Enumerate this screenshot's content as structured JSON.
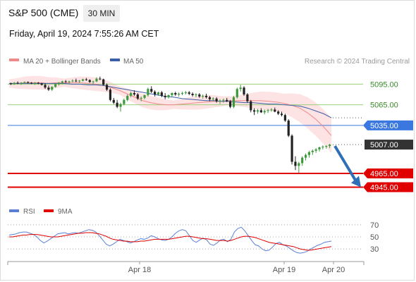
{
  "header": {
    "title": "S&P 500 (CME)",
    "timeframe": "30 MIN",
    "datetime": "Friday, April 19, 2024 7:55:26 AM CET"
  },
  "legend": {
    "items": [
      {
        "label": "MA 20 + Bollinger Bands",
        "color": "#f08a8a"
      },
      {
        "label": "MA 50",
        "color": "#3b5ea8"
      }
    ],
    "credit": "Research © 2024 Trading Central"
  },
  "chart_data": [
    {
      "type": "candlestick",
      "ylim": [
        4925,
        5120
      ],
      "x_ticks": [
        "Apr 18",
        "Apr 19",
        "Apr 20"
      ],
      "series": [
        {
          "name": "MA 20 + Bollinger Bands",
          "color": "#f08a8a",
          "band_color": "#fde3e3",
          "values": [
            5096,
            5096,
            5097,
            5097,
            5097,
            5096,
            5097,
            5097,
            5097,
            5097,
            5096,
            5095,
            5093,
            5090,
            5086,
            5081,
            5076,
            5071,
            5068,
            5066,
            5065,
            5065,
            5066,
            5067,
            5068,
            5069,
            5070,
            5070,
            5071,
            5071,
            5071,
            5071,
            5071,
            5070,
            5069,
            5067,
            5064,
            5060,
            5053,
            5044,
            5033,
            5020
          ]
        },
        {
          "name": "MA 50",
          "color": "#3b5ea8",
          "values": [
            5096,
            5096,
            5096,
            5096,
            5096,
            5096,
            5096,
            5096,
            5095,
            5095,
            5094,
            5094,
            5093,
            5091,
            5089,
            5087,
            5085,
            5083,
            5081,
            5079,
            5077,
            5076,
            5074,
            5073,
            5072,
            5071,
            5071,
            5070,
            5070,
            5069,
            5068,
            5068,
            5067,
            5066,
            5066,
            5065,
            5064,
            5063,
            5060,
            5056,
            5052,
            5046
          ]
        }
      ],
      "candles": [
        [
          5096,
          5097,
          5094,
          5095
        ],
        [
          5095,
          5098,
          5094,
          5097
        ],
        [
          5097,
          5099,
          5095,
          5096
        ],
        [
          5096,
          5098,
          5094,
          5097
        ],
        [
          5097,
          5099,
          5096,
          5098
        ],
        [
          5098,
          5099,
          5096,
          5097
        ],
        [
          5097,
          5098,
          5095,
          5096
        ],
        [
          5096,
          5098,
          5094,
          5097
        ],
        [
          5097,
          5098,
          5095,
          5096
        ],
        [
          5096,
          5097,
          5093,
          5094
        ],
        [
          5094,
          5096,
          5088,
          5090
        ],
        [
          5090,
          5093,
          5085,
          5087
        ],
        [
          5087,
          5092,
          5085,
          5091
        ],
        [
          5091,
          5096,
          5090,
          5095
        ],
        [
          5095,
          5098,
          5093,
          5097
        ],
        [
          5097,
          5100,
          5095,
          5099
        ],
        [
          5099,
          5101,
          5097,
          5098
        ],
        [
          5098,
          5100,
          5096,
          5099
        ],
        [
          5099,
          5102,
          5098,
          5100
        ],
        [
          5100,
          5103,
          5098,
          5099
        ],
        [
          5099,
          5101,
          5097,
          5100
        ],
        [
          5100,
          5103,
          5099,
          5102
        ],
        [
          5102,
          5104,
          5100,
          5101
        ],
        [
          5101,
          5102,
          5097,
          5098
        ],
        [
          5098,
          5100,
          5095,
          5099
        ],
        [
          5099,
          5105,
          5098,
          5103
        ],
        [
          5103,
          5106,
          5101,
          5102
        ],
        [
          5102,
          5103,
          5093,
          5094
        ],
        [
          5094,
          5096,
          5085,
          5087
        ],
        [
          5087,
          5089,
          5070,
          5072
        ],
        [
          5072,
          5075,
          5066,
          5068
        ],
        [
          5068,
          5072,
          5060,
          5062
        ],
        [
          5062,
          5068,
          5055,
          5066
        ],
        [
          5066,
          5074,
          5064,
          5072
        ],
        [
          5072,
          5080,
          5070,
          5078
        ],
        [
          5078,
          5084,
          5076,
          5082
        ],
        [
          5082,
          5086,
          5078,
          5080
        ],
        [
          5080,
          5082,
          5072,
          5074
        ],
        [
          5074,
          5077,
          5070,
          5075
        ],
        [
          5075,
          5080,
          5073,
          5079
        ],
        [
          5079,
          5090,
          5077,
          5088
        ],
        [
          5088,
          5092,
          5082,
          5084
        ],
        [
          5084,
          5086,
          5077,
          5080
        ],
        [
          5080,
          5084,
          5078,
          5083
        ],
        [
          5083,
          5085,
          5076,
          5078
        ],
        [
          5078,
          5082,
          5073,
          5076
        ],
        [
          5076,
          5080,
          5074,
          5079
        ],
        [
          5079,
          5083,
          5076,
          5082
        ],
        [
          5082,
          5084,
          5078,
          5080
        ],
        [
          5080,
          5083,
          5077,
          5081
        ],
        [
          5081,
          5084,
          5079,
          5082
        ],
        [
          5082,
          5085,
          5080,
          5083
        ],
        [
          5083,
          5085,
          5079,
          5081
        ],
        [
          5081,
          5083,
          5077,
          5079
        ],
        [
          5079,
          5082,
          5076,
          5080
        ],
        [
          5080,
          5082,
          5075,
          5077
        ],
        [
          5077,
          5080,
          5074,
          5078
        ],
        [
          5078,
          5081,
          5074,
          5076
        ],
        [
          5076,
          5078,
          5070,
          5073
        ],
        [
          5073,
          5076,
          5070,
          5074
        ],
        [
          5074,
          5076,
          5068,
          5070
        ],
        [
          5070,
          5073,
          5066,
          5071
        ],
        [
          5071,
          5074,
          5068,
          5072
        ],
        [
          5072,
          5075,
          5069,
          5070
        ],
        [
          5070,
          5072,
          5060,
          5062
        ],
        [
          5062,
          5078,
          5060,
          5076
        ],
        [
          5076,
          5090,
          5074,
          5088
        ],
        [
          5088,
          5094,
          5084,
          5090
        ],
        [
          5090,
          5092,
          5078,
          5080
        ],
        [
          5080,
          5082,
          5068,
          5070
        ],
        [
          5070,
          5072,
          5054,
          5057
        ],
        [
          5057,
          5060,
          5050,
          5055
        ],
        [
          5055,
          5059,
          5052,
          5057
        ],
        [
          5057,
          5060,
          5053,
          5054
        ],
        [
          5054,
          5058,
          5051,
          5056
        ],
        [
          5056,
          5059,
          5053,
          5057
        ],
        [
          5057,
          5060,
          5055,
          5058
        ],
        [
          5058,
          5061,
          5054,
          5055
        ],
        [
          5055,
          5057,
          5050,
          5052
        ],
        [
          5052,
          5055,
          5048,
          5050
        ],
        [
          5050,
          5052,
          5040,
          5042
        ],
        [
          5042,
          5044,
          5018,
          5020
        ],
        [
          5020,
          5022,
          4978,
          4982
        ],
        [
          4982,
          4990,
          4970,
          4976
        ],
        [
          4976,
          4982,
          4966,
          4980
        ],
        [
          4980,
          4990,
          4976,
          4988
        ],
        [
          4988,
          4994,
          4984,
          4992
        ],
        [
          4992,
          4998,
          4988,
          4996
        ],
        [
          4996,
          5000,
          4992,
          4998
        ],
        [
          4998,
          5002,
          4995,
          5000
        ],
        [
          5000,
          5004,
          4997,
          5003
        ],
        [
          5003,
          5006,
          5000,
          5004
        ],
        [
          5004,
          5006,
          5001,
          5005
        ],
        [
          5005,
          5008,
          5002,
          5007
        ]
      ],
      "levels": [
        {
          "label": "5095.00",
          "value": 5095,
          "kind": "resistance"
        },
        {
          "label": "5065.00",
          "value": 5065,
          "kind": "resistance"
        },
        {
          "label": "5035.00",
          "value": 5035,
          "kind": "pivot"
        },
        {
          "label": "5007.00",
          "value": 5007,
          "kind": "last"
        },
        {
          "label": "4965.00",
          "value": 4965,
          "kind": "support"
        },
        {
          "label": "4945.00",
          "value": 4945,
          "kind": "support"
        }
      ],
      "forecast": {
        "from": 5007,
        "to": 4945
      },
      "colors": {
        "up": "#3c9a3c",
        "down": "#222222",
        "resistance": "#9ccf7c",
        "pivot": "#3a78e0",
        "support": "#e00000",
        "last": "#333333"
      }
    },
    {
      "type": "line",
      "ylim": [
        15,
        85
      ],
      "y_ticks": [
        70,
        50,
        30
      ],
      "legend": [
        {
          "label": "RSI",
          "color": "#5b7fd6"
        },
        {
          "label": "9MA",
          "color": "#e00000"
        }
      ],
      "series": [
        {
          "name": "RSI",
          "color": "#5b7fd6",
          "values": [
            53,
            54,
            55,
            57,
            58,
            58,
            56,
            54,
            50,
            44,
            40,
            43,
            47,
            51,
            55,
            56,
            57,
            55,
            56,
            57,
            56,
            58,
            60,
            62,
            61,
            58,
            52,
            45,
            38,
            35,
            38,
            42,
            46,
            44,
            42,
            40,
            42,
            45,
            47,
            46,
            48,
            52,
            50,
            47,
            45,
            44,
            46,
            50,
            56,
            60,
            62,
            60,
            52,
            44,
            41,
            45,
            48,
            45,
            38,
            36,
            40,
            45,
            46,
            42,
            46,
            58,
            64,
            66,
            60,
            52,
            44,
            37,
            35,
            30,
            27,
            28,
            33,
            39,
            41,
            37,
            35,
            31,
            27,
            24,
            23,
            24,
            26,
            30,
            33,
            36,
            38,
            41,
            42,
            43
          ]
        },
        {
          "name": "9MA",
          "color": "#e00000",
          "values": [
            50,
            50,
            51,
            52,
            53,
            53,
            54,
            54,
            54,
            53,
            52,
            51,
            50,
            50,
            50,
            51,
            52,
            53,
            54,
            55,
            56,
            56,
            57,
            57,
            57,
            56,
            55,
            53,
            51,
            48,
            46,
            45,
            44,
            43,
            43,
            42,
            42,
            42,
            43,
            43,
            44,
            45,
            46,
            46,
            46,
            46,
            46,
            47,
            48,
            49,
            50,
            51,
            51,
            50,
            49,
            48,
            47,
            47,
            46,
            45,
            44,
            44,
            44,
            43,
            44,
            46,
            48,
            50,
            51,
            51,
            50,
            49,
            47,
            45,
            43,
            41,
            40,
            39,
            38,
            37,
            36,
            35,
            34,
            32,
            30,
            29,
            28,
            28,
            29,
            30,
            31,
            32,
            33,
            34
          ]
        }
      ]
    }
  ]
}
